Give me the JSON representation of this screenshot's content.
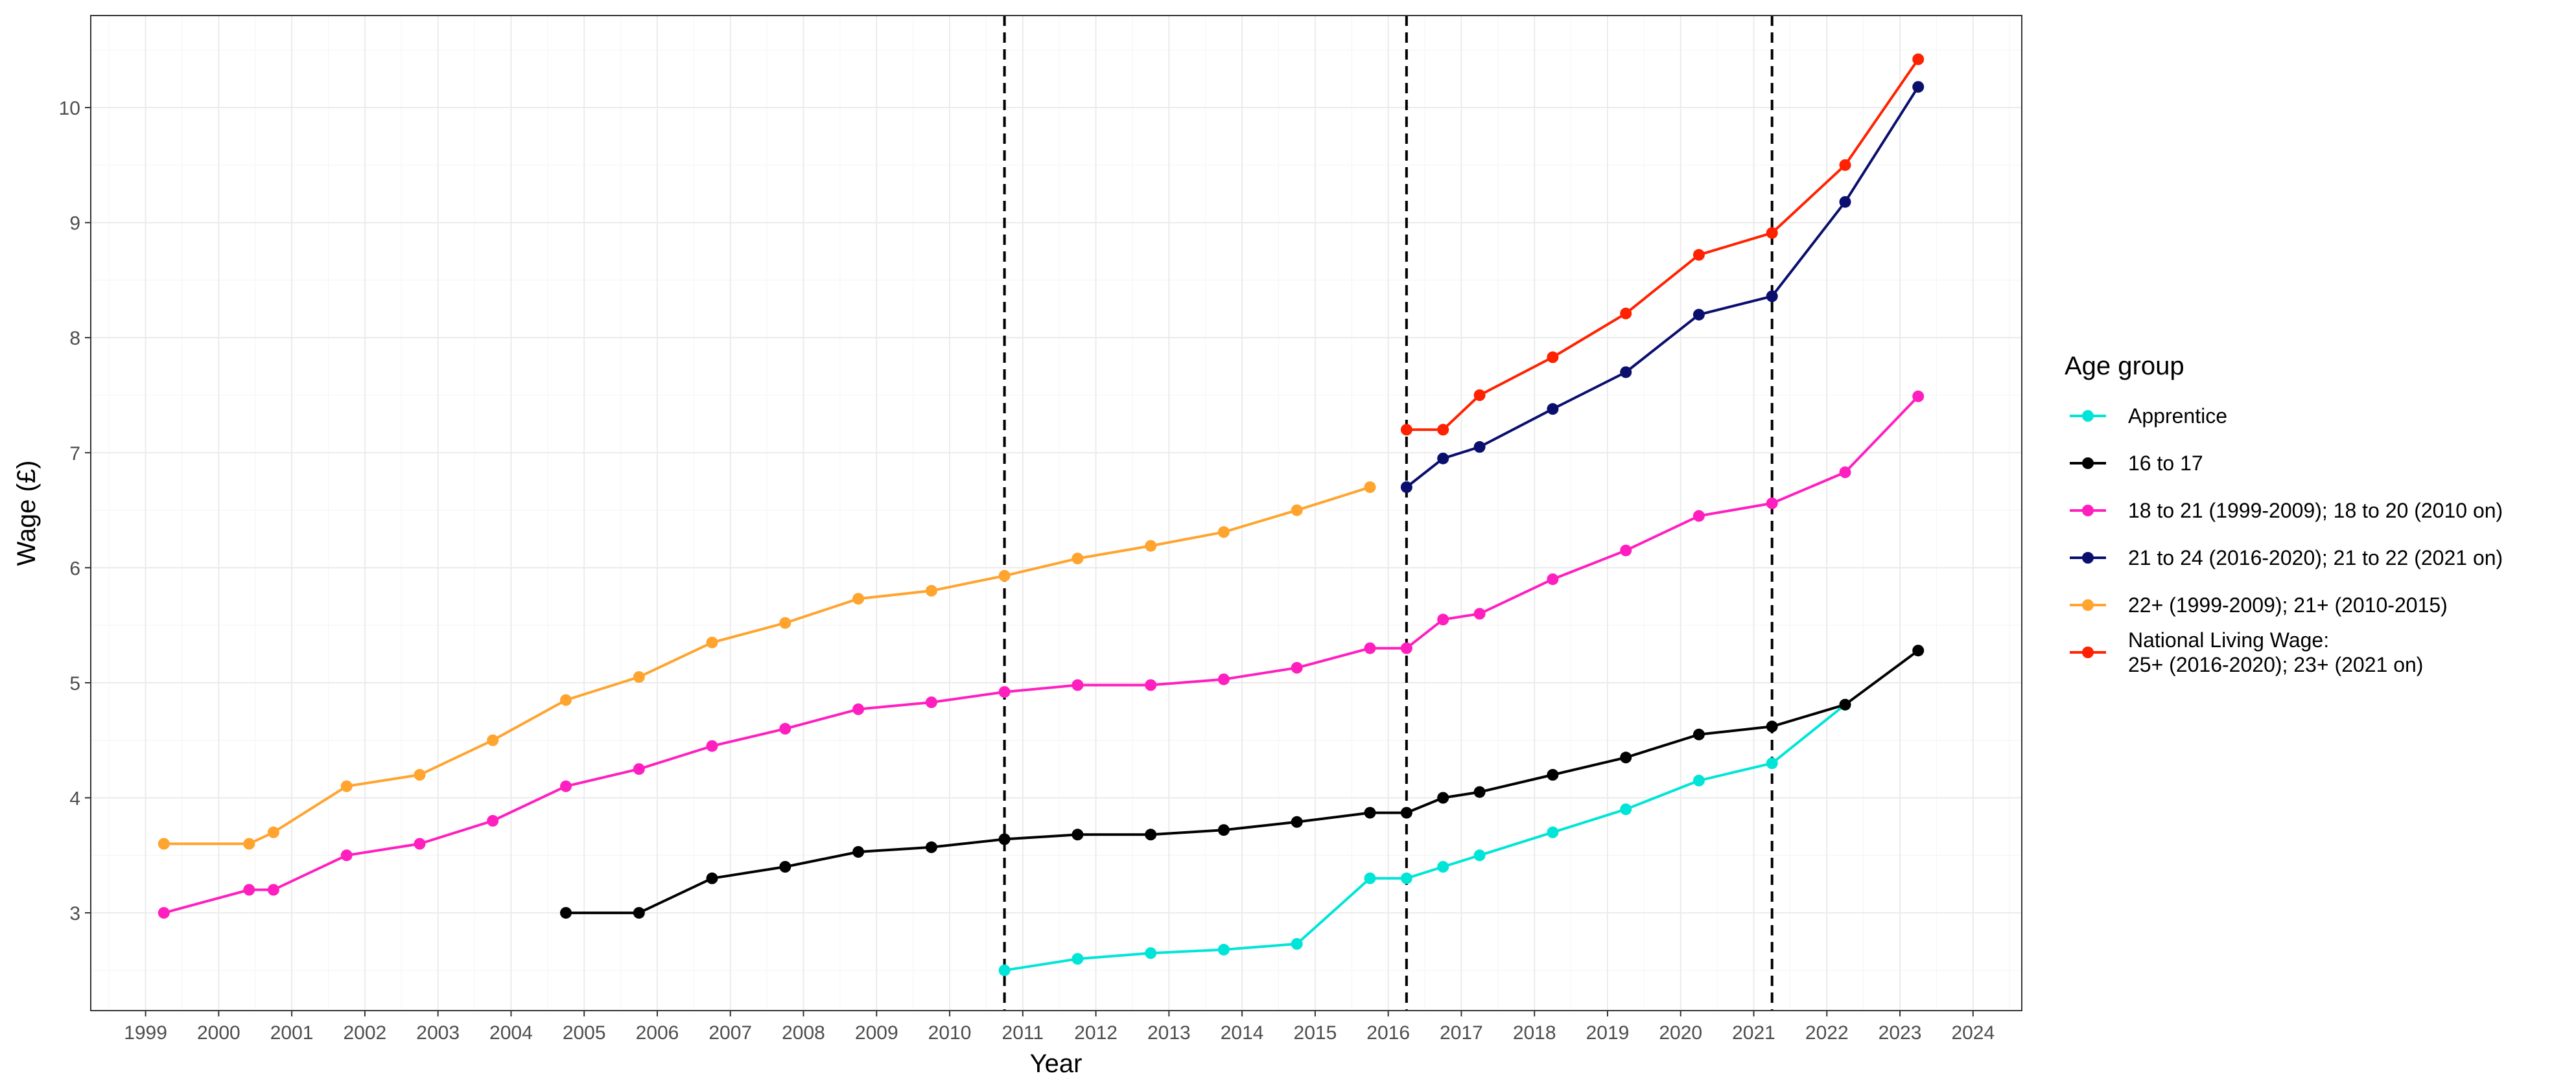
{
  "chart_data": {
    "type": "line",
    "title": "",
    "xlabel": "Year",
    "ylabel": "Wage (£)",
    "xlim": [
      "1998-04-01",
      "2024-09-01"
    ],
    "ylim": [
      2.15,
      10.8
    ],
    "x_tick_labels": [
      "1999",
      "2000",
      "2001",
      "2002",
      "2003",
      "2004",
      "2005",
      "2006",
      "2007",
      "2008",
      "2009",
      "2010",
      "2011",
      "2012",
      "2013",
      "2014",
      "2015",
      "2016",
      "2017",
      "2018",
      "2019",
      "2020",
      "2021",
      "2022",
      "2023",
      "2024"
    ],
    "y_tick_labels": [
      "3",
      "4",
      "5",
      "6",
      "7",
      "8",
      "9",
      "10"
    ],
    "grid": true,
    "legend": {
      "title": "Age group",
      "placement": "right"
    },
    "reference_lines": [
      {
        "x": "2010-10-01",
        "style": "dashed",
        "color": "#000000"
      },
      {
        "x": "2016-04-01",
        "style": "dashed",
        "color": "#000000"
      },
      {
        "x": "2021-04-01",
        "style": "dashed",
        "color": "#000000"
      }
    ],
    "series": [
      {
        "name": "Apprentice",
        "color": "#00e5d8",
        "points": [
          {
            "x": "2010-10-01",
            "y": 2.5
          },
          {
            "x": "2011-10-01",
            "y": 2.6
          },
          {
            "x": "2012-10-01",
            "y": 2.65
          },
          {
            "x": "2013-10-01",
            "y": 2.68
          },
          {
            "x": "2014-10-01",
            "y": 2.73
          },
          {
            "x": "2015-10-01",
            "y": 3.3
          },
          {
            "x": "2016-04-01",
            "y": 3.3
          },
          {
            "x": "2016-10-01",
            "y": 3.4
          },
          {
            "x": "2017-04-01",
            "y": 3.5
          },
          {
            "x": "2018-04-01",
            "y": 3.7
          },
          {
            "x": "2019-04-01",
            "y": 3.9
          },
          {
            "x": "2020-04-01",
            "y": 4.15
          },
          {
            "x": "2021-04-01",
            "y": 4.3
          },
          {
            "x": "2022-04-01",
            "y": 4.81
          }
        ]
      },
      {
        "name": "16 to 17",
        "color": "#000000",
        "points": [
          {
            "x": "2004-10-01",
            "y": 3.0
          },
          {
            "x": "2005-10-01",
            "y": 3.0
          },
          {
            "x": "2006-10-01",
            "y": 3.3
          },
          {
            "x": "2007-10-01",
            "y": 3.4
          },
          {
            "x": "2008-10-01",
            "y": 3.53
          },
          {
            "x": "2009-10-01",
            "y": 3.57
          },
          {
            "x": "2010-10-01",
            "y": 3.64
          },
          {
            "x": "2011-10-01",
            "y": 3.68
          },
          {
            "x": "2012-10-01",
            "y": 3.68
          },
          {
            "x": "2013-10-01",
            "y": 3.72
          },
          {
            "x": "2014-10-01",
            "y": 3.79
          },
          {
            "x": "2015-10-01",
            "y": 3.87
          },
          {
            "x": "2016-04-01",
            "y": 3.87
          },
          {
            "x": "2016-10-01",
            "y": 4.0
          },
          {
            "x": "2017-04-01",
            "y": 4.05
          },
          {
            "x": "2018-04-01",
            "y": 4.2
          },
          {
            "x": "2019-04-01",
            "y": 4.35
          },
          {
            "x": "2020-04-01",
            "y": 4.55
          },
          {
            "x": "2021-04-01",
            "y": 4.62
          },
          {
            "x": "2022-04-01",
            "y": 4.81
          },
          {
            "x": "2023-04-01",
            "y": 5.28
          }
        ]
      },
      {
        "name": "18 to 21 (1999-2009); 18 to 20 (2010 on)",
        "color": "#ff1fbf",
        "points": [
          {
            "x": "1999-04-01",
            "y": 3.0
          },
          {
            "x": "2000-06-01",
            "y": 3.2
          },
          {
            "x": "2000-10-01",
            "y": 3.2
          },
          {
            "x": "2001-10-01",
            "y": 3.5
          },
          {
            "x": "2002-10-01",
            "y": 3.6
          },
          {
            "x": "2003-10-01",
            "y": 3.8
          },
          {
            "x": "2004-10-01",
            "y": 4.1
          },
          {
            "x": "2005-10-01",
            "y": 4.25
          },
          {
            "x": "2006-10-01",
            "y": 4.45
          },
          {
            "x": "2007-10-01",
            "y": 4.6
          },
          {
            "x": "2008-10-01",
            "y": 4.77
          },
          {
            "x": "2009-10-01",
            "y": 4.83
          },
          {
            "x": "2010-10-01",
            "y": 4.92
          },
          {
            "x": "2011-10-01",
            "y": 4.98
          },
          {
            "x": "2012-10-01",
            "y": 4.98
          },
          {
            "x": "2013-10-01",
            "y": 5.03
          },
          {
            "x": "2014-10-01",
            "y": 5.13
          },
          {
            "x": "2015-10-01",
            "y": 5.3
          },
          {
            "x": "2016-04-01",
            "y": 5.3
          },
          {
            "x": "2016-10-01",
            "y": 5.55
          },
          {
            "x": "2017-04-01",
            "y": 5.6
          },
          {
            "x": "2018-04-01",
            "y": 5.9
          },
          {
            "x": "2019-04-01",
            "y": 6.15
          },
          {
            "x": "2020-04-01",
            "y": 6.45
          },
          {
            "x": "2021-04-01",
            "y": 6.56
          },
          {
            "x": "2022-04-01",
            "y": 6.83
          },
          {
            "x": "2023-04-01",
            "y": 7.49
          }
        ]
      },
      {
        "name": "21 to 24 (2016-2020); 21 to 22 (2021 on)",
        "color": "#0a0f6e",
        "points": [
          {
            "x": "2016-04-01",
            "y": 6.7
          },
          {
            "x": "2016-10-01",
            "y": 6.95
          },
          {
            "x": "2017-04-01",
            "y": 7.05
          },
          {
            "x": "2018-04-01",
            "y": 7.38
          },
          {
            "x": "2019-04-01",
            "y": 7.7
          },
          {
            "x": "2020-04-01",
            "y": 8.2
          },
          {
            "x": "2021-04-01",
            "y": 8.36
          },
          {
            "x": "2022-04-01",
            "y": 9.18
          },
          {
            "x": "2023-04-01",
            "y": 10.18
          }
        ]
      },
      {
        "name": "22+ (1999-2009); 21+ (2010-2015)",
        "color": "#ffa42e",
        "points": [
          {
            "x": "1999-04-01",
            "y": 3.6
          },
          {
            "x": "2000-06-01",
            "y": 3.6
          },
          {
            "x": "2000-10-01",
            "y": 3.7
          },
          {
            "x": "2001-10-01",
            "y": 4.1
          },
          {
            "x": "2002-10-01",
            "y": 4.2
          },
          {
            "x": "2003-10-01",
            "y": 4.5
          },
          {
            "x": "2004-10-01",
            "y": 4.85
          },
          {
            "x": "2005-10-01",
            "y": 5.05
          },
          {
            "x": "2006-10-01",
            "y": 5.35
          },
          {
            "x": "2007-10-01",
            "y": 5.52
          },
          {
            "x": "2008-10-01",
            "y": 5.73
          },
          {
            "x": "2009-10-01",
            "y": 5.8
          },
          {
            "x": "2010-10-01",
            "y": 5.93
          },
          {
            "x": "2011-10-01",
            "y": 6.08
          },
          {
            "x": "2012-10-01",
            "y": 6.19
          },
          {
            "x": "2013-10-01",
            "y": 6.31
          },
          {
            "x": "2014-10-01",
            "y": 6.5
          },
          {
            "x": "2015-10-01",
            "y": 6.7
          }
        ]
      },
      {
        "name": "National Living Wage:\n25+ (2016-2020); 23+ (2021 on)",
        "color": "#ff2200",
        "points": [
          {
            "x": "2016-04-01",
            "y": 7.2
          },
          {
            "x": "2016-10-01",
            "y": 7.2
          },
          {
            "x": "2017-04-01",
            "y": 7.5
          },
          {
            "x": "2018-04-01",
            "y": 7.83
          },
          {
            "x": "2019-04-01",
            "y": 8.21
          },
          {
            "x": "2020-04-01",
            "y": 8.72
          },
          {
            "x": "2021-04-01",
            "y": 8.91
          },
          {
            "x": "2022-04-01",
            "y": 9.5
          },
          {
            "x": "2023-04-01",
            "y": 10.42
          }
        ]
      }
    ]
  }
}
